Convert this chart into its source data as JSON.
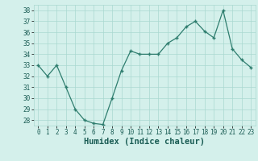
{
  "x": [
    0,
    1,
    2,
    3,
    4,
    5,
    6,
    7,
    8,
    9,
    10,
    11,
    12,
    13,
    14,
    15,
    16,
    17,
    18,
    19,
    20,
    21,
    22,
    23
  ],
  "y": [
    33,
    32,
    33,
    31,
    29,
    28,
    27.7,
    27.6,
    30,
    32.5,
    34.3,
    34,
    34,
    34,
    35,
    35.5,
    36.5,
    37,
    36.1,
    35.5,
    38,
    34.5,
    33.5,
    32.8
  ],
  "line_color": "#2e7d6e",
  "marker": "+",
  "bg_color": "#d4f0eb",
  "grid_color": "#aad8d0",
  "xlabel": "Humidex (Indice chaleur)",
  "ylim": [
    27.5,
    38.5
  ],
  "yticks": [
    28,
    29,
    30,
    31,
    32,
    33,
    34,
    35,
    36,
    37,
    38
  ],
  "xticks": [
    0,
    1,
    2,
    3,
    4,
    5,
    6,
    7,
    8,
    9,
    10,
    11,
    12,
    13,
    14,
    15,
    16,
    17,
    18,
    19,
    20,
    21,
    22,
    23
  ],
  "tick_fontsize": 5.5,
  "xlabel_fontsize": 7.5
}
